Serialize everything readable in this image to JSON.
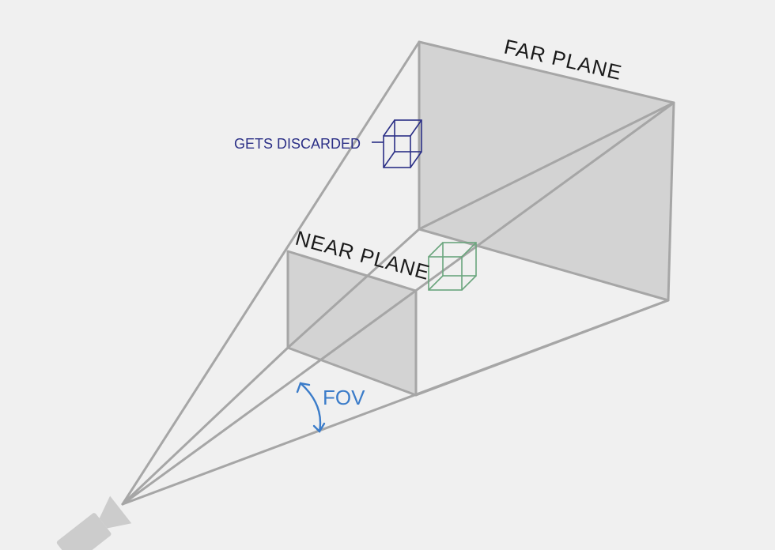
{
  "labels": {
    "far_plane": "FAR PLANE",
    "near_plane": "NEAR PLANE",
    "gets_discarded": "GETS DISCARDED",
    "fov": "FOV"
  },
  "colors": {
    "background": "#f0f0f0",
    "frustum_edge": "#a6a6a6",
    "plane_fill": "#d3d3d3",
    "discarded_cube": "#2b2f86",
    "kept_cube": "#6aa57d",
    "fov_accent": "#3b7cc9",
    "camera": "#cccccc",
    "text": "#1a1a1a"
  },
  "icons": {
    "camera": "camera-icon",
    "discarded_cube": "wireframe-cube-icon",
    "kept_cube": "wireframe-cube-icon",
    "fov_arc": "double-arrow-arc-icon"
  }
}
